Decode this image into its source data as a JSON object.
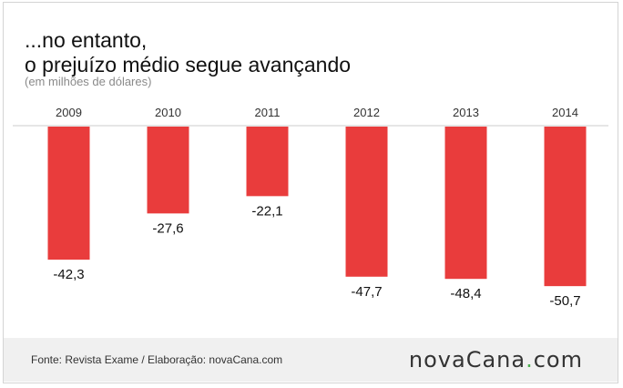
{
  "header": {
    "title_line1": "...no entanto,",
    "title_line2": "o prejuízo médio segue avançando",
    "subtitle": "(em milhões de dólares)"
  },
  "chart_data": {
    "type": "bar",
    "categories": [
      "2009",
      "2010",
      "2011",
      "2012",
      "2013",
      "2014"
    ],
    "values": [
      -42.3,
      -27.6,
      -22.1,
      -47.7,
      -48.4,
      -50.7
    ],
    "value_labels": [
      "-42,3",
      "-27,6",
      "-22,1",
      "-47,7",
      "-48,4",
      "-50,7"
    ],
    "title": "...no entanto, o prejuízo médio segue avançando",
    "subtitle": "(em milhões de dólares)",
    "ylim": [
      -55,
      0
    ],
    "grid": false,
    "bar_color": "#e93c3c",
    "axis_color": "#cccccc"
  },
  "footer": {
    "source": "Fonte: Revista Exame / Elaboração: novaCana.com",
    "logo_main": "novaCana",
    "logo_dot": ".",
    "logo_suffix": "com",
    "logo_dot_color": "#4caf50"
  }
}
